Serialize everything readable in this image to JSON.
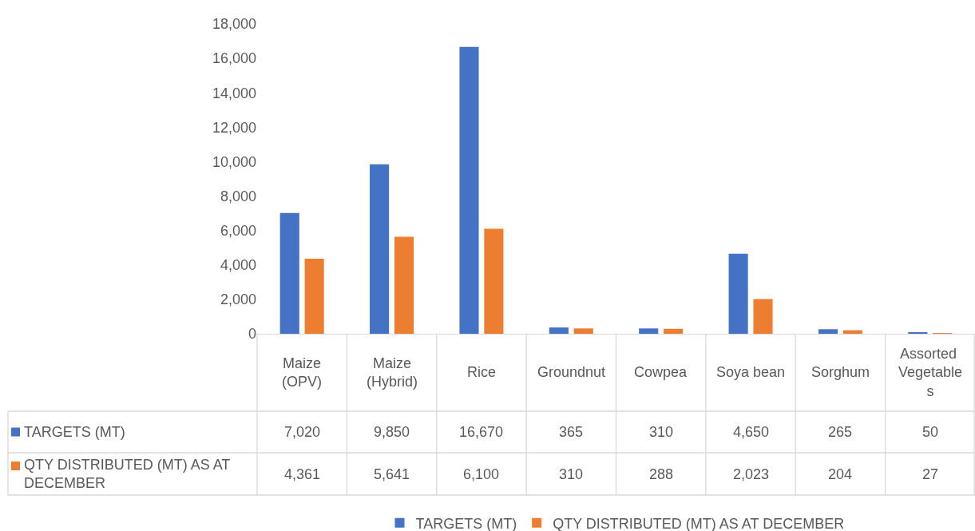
{
  "chart_data": {
    "type": "bar",
    "categories": [
      "Maize (OPV)",
      "Maize (Hybrid)",
      "Rice",
      "Groundnut",
      "Cowpea",
      "Soya bean",
      "Sorghum",
      "Assorted Vegetables"
    ],
    "series": [
      {
        "name": "TARGETS (MT)",
        "color": "#4472c4",
        "values": [
          7020,
          9850,
          16670,
          365,
          310,
          4650,
          265,
          50
        ],
        "value_labels": [
          "7,020",
          "9,850",
          "16,670",
          "365",
          "310",
          "4,650",
          "265",
          "50"
        ]
      },
      {
        "name": "QTY DISTRIBUTED (MT) AS AT DECEMBER",
        "color": "#ed7d31",
        "values": [
          4361,
          5641,
          6100,
          310,
          288,
          2023,
          204,
          27
        ],
        "value_labels": [
          "4,361",
          "5,641",
          "6,100",
          "310",
          "288",
          "2,023",
          "204",
          "27"
        ]
      }
    ],
    "ylim": [
      0,
      18000
    ],
    "yticks": [
      {
        "value": 0,
        "label": "0"
      },
      {
        "value": 2000,
        "label": "2,000"
      },
      {
        "value": 4000,
        "label": "4,000"
      },
      {
        "value": 6000,
        "label": "6,000"
      },
      {
        "value": 8000,
        "label": "8,000"
      },
      {
        "value": 10000,
        "label": "10,000"
      },
      {
        "value": 12000,
        "label": "12,000"
      },
      {
        "value": 14000,
        "label": "14,000"
      },
      {
        "value": 16000,
        "label": "16,000"
      },
      {
        "value": 18000,
        "label": "18,000"
      }
    ],
    "legend": "bottom"
  }
}
